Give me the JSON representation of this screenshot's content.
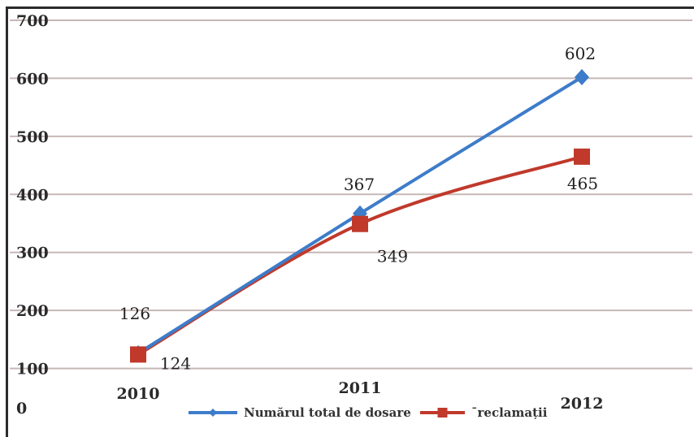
{
  "chart_data": {
    "type": "line",
    "categories": [
      "2010",
      "2011",
      "2012"
    ],
    "series": [
      {
        "name": "Numărul total de dosare",
        "values": [
          126,
          367,
          602
        ],
        "color": "#3d7cc9",
        "marker": "diamond"
      },
      {
        "name": "ˉreclamații",
        "values": [
          124,
          349,
          465
        ],
        "color": "#c0392b",
        "marker": "square"
      }
    ],
    "ylim": [
      0,
      700
    ],
    "yticks": [
      0,
      100,
      200,
      300,
      400,
      500,
      600,
      700
    ],
    "grid": true,
    "legend_placement": "bottom-center",
    "title": "",
    "xlabel": "",
    "ylabel": ""
  }
}
